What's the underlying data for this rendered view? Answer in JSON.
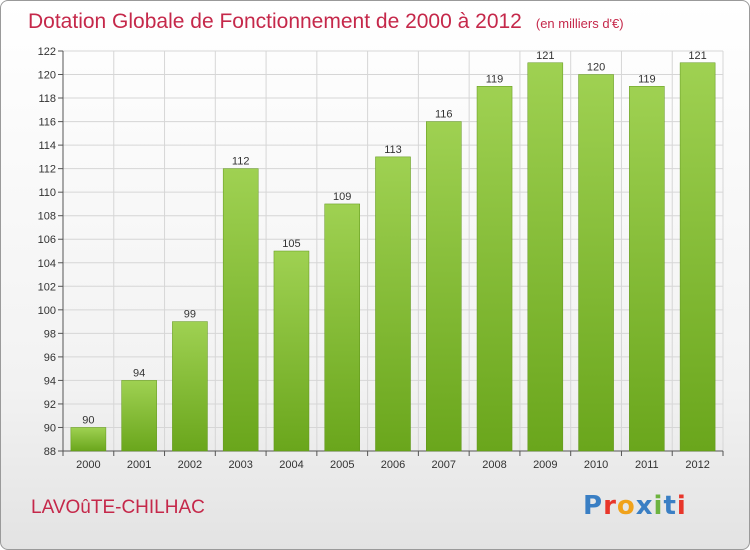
{
  "chart_data": {
    "type": "bar",
    "title": "Dotation Globale de Fonctionnement de 2000 à 2012",
    "subtitle": "(en milliers d'€)",
    "categories": [
      "2000",
      "2001",
      "2002",
      "2003",
      "2004",
      "2005",
      "2006",
      "2007",
      "2008",
      "2009",
      "2010",
      "2011",
      "2012"
    ],
    "values": [
      90,
      94,
      99,
      112,
      105,
      109,
      113,
      116,
      119,
      121,
      120,
      119,
      121
    ],
    "ylim": [
      88,
      122
    ],
    "yticks": [
      88,
      90,
      92,
      94,
      96,
      98,
      100,
      102,
      104,
      106,
      108,
      110,
      112,
      114,
      116,
      118,
      120,
      122
    ],
    "grid": true,
    "legend": "none",
    "bar_color_light": "#9fd152",
    "bar_color_dark": "#6aa61c"
  },
  "footer": {
    "commune": "LAVOûTE-CHILHAC",
    "logo_letters": [
      "P",
      "r",
      "o",
      "x",
      "i",
      "t",
      "i"
    ],
    "logo_colors": [
      "#3a7fc4",
      "#e8362a",
      "#f0a21b",
      "#3a7fc4",
      "#6db33f",
      "#3a7fc4",
      "#e8362a"
    ]
  }
}
